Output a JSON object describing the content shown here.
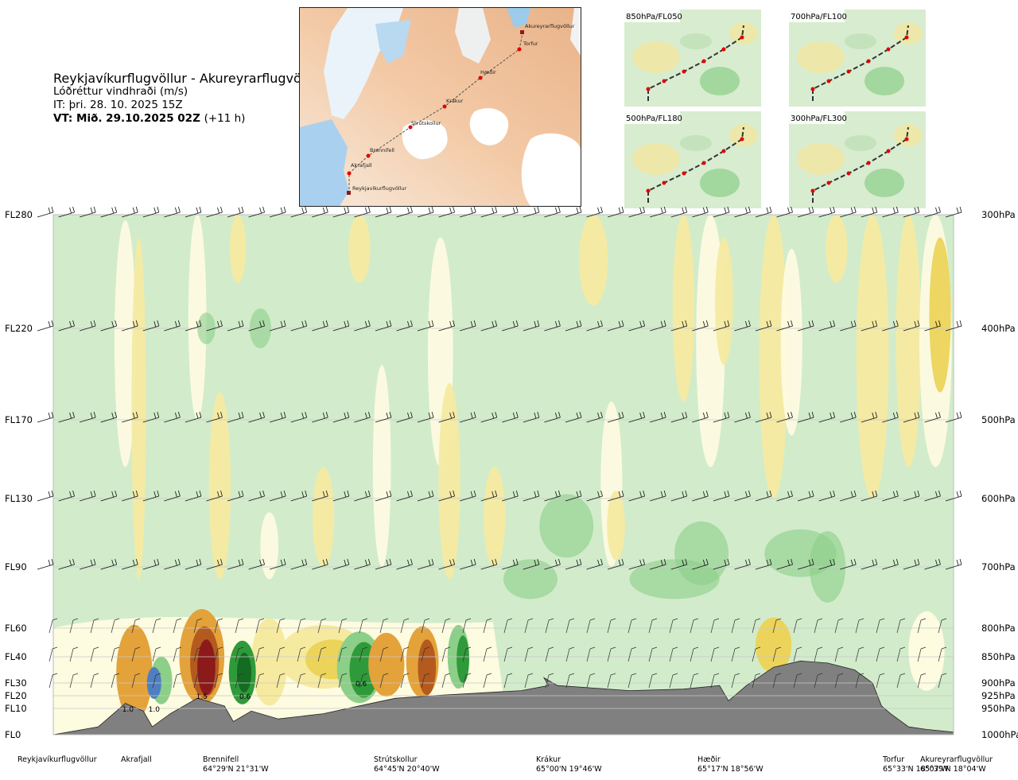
{
  "title": {
    "route": "Reykjavíkurflugvöllur - Akureyrarflugvöllur",
    "quantity": "Lóðréttur vindhraði (m/s)",
    "it": "IT: þri. 28. 10. 2025 15Z",
    "vt_bold": "VT: Mið. 29.10.2025 02Z",
    "vt_offset": "(+11 h)"
  },
  "map": {
    "points": [
      "Akureyrarflugvöllur",
      "Torfur",
      "Hæðir",
      "Krákur",
      "Strútskollur",
      "Brennifell",
      "Akrafjall",
      "Reykjavíkurflugvöllur"
    ]
  },
  "thumbnails": [
    {
      "label": "850hPa/FL050"
    },
    {
      "label": "700hPa/FL100"
    },
    {
      "label": "500hPa/FL180"
    },
    {
      "label": "300hPa/FL300"
    }
  ],
  "chart_data": {
    "type": "heatmap",
    "title": "Lóðréttur vindhraði (m/s)",
    "y_left_flight_levels": [
      {
        "label": "FL280",
        "p": 300
      },
      {
        "label": "FL220",
        "p": 400
      },
      {
        "label": "FL170",
        "p": 500
      },
      {
        "label": "FL130",
        "p": 600
      },
      {
        "label": "FL90",
        "p": 700
      },
      {
        "label": "FL60",
        "p": 800
      },
      {
        "label": "FL40",
        "p": 850
      },
      {
        "label": "FL30",
        "p": 900
      },
      {
        "label": "FL20",
        "p": 925
      },
      {
        "label": "FL10",
        "p": 950
      },
      {
        "label": "FL0",
        "p": 1000
      }
    ],
    "y_right_pressure_levels": [
      {
        "label": "300hPa",
        "p": 300
      },
      {
        "label": "400hPa",
        "p": 400
      },
      {
        "label": "500hPa",
        "p": 500
      },
      {
        "label": "600hPa",
        "p": 600
      },
      {
        "label": "700hPa",
        "p": 700
      },
      {
        "label": "800hPa",
        "p": 800
      },
      {
        "label": "850hPa",
        "p": 850
      },
      {
        "label": "900hPa",
        "p": 900
      },
      {
        "label": "925hPa",
        "p": 925
      },
      {
        "label": "950hPa",
        "p": 950
      },
      {
        "label": "1000hPa",
        "p": 1000
      }
    ],
    "x_stations": [
      {
        "name": "Reykjavíkurflugvöllur",
        "coord": "",
        "x": 0.0
      },
      {
        "name": "Akrafjall",
        "coord": "",
        "x": 0.08
      },
      {
        "name": "Brennifell",
        "coord": "64°29'N 21°31'W",
        "x": 0.185
      },
      {
        "name": "Strútskollur",
        "coord": "64°45'N 20°40'W",
        "x": 0.38
      },
      {
        "name": "Krákur",
        "coord": "65°00'N 19°46'W",
        "x": 0.575
      },
      {
        "name": "Hæðir",
        "coord": "65°17'N 18°56'W",
        "x": 0.76
      },
      {
        "name": "Torfur",
        "coord": "65°33'N 18°07'W",
        "x": 0.945
      },
      {
        "name": "Akureyrarflugvöllur",
        "coord": "65°39'N 18°04'W",
        "x": 1.0
      }
    ],
    "contour_labels": [
      {
        "text": "1.0",
        "x": 0.083,
        "p": 950
      },
      {
        "text": "1.0",
        "x": 0.112,
        "p": 950
      },
      {
        "text": "1.5",
        "x": 0.165,
        "p": 925
      },
      {
        "text": "0.6",
        "x": 0.213,
        "p": 925
      },
      {
        "text": "0.6",
        "x": 0.342,
        "p": 900
      }
    ],
    "colors": {
      "background": "#d2eccb",
      "pale": "#fdfbe0",
      "yellow_light": "#f6eaa0",
      "yellow": "#ecd45a",
      "orange": "#e4a23a",
      "brown": "#b45a1e",
      "darkred": "#8c1a1a",
      "green_mid": "#8ccf88",
      "green_dark": "#2f9a3a",
      "green_deep": "#146b22",
      "blue": "#4f7fc0",
      "terrain": "#808080"
    }
  }
}
